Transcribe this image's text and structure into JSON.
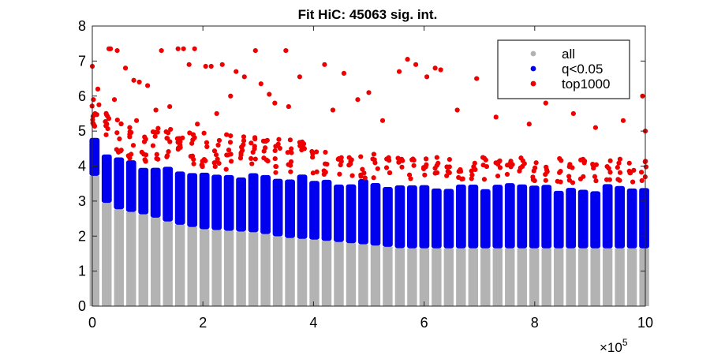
{
  "chart_data": {
    "type": "scatter",
    "title": "Fit HiC: 45063 sig. int.",
    "xlabel": "",
    "ylabel": "",
    "x_exponent_label": "×10",
    "x_exponent_power": "5",
    "xlim": [
      0,
      10
    ],
    "ylim": [
      0,
      8
    ],
    "xticks": [
      0,
      2,
      4,
      6,
      8,
      10
    ],
    "yticks": [
      0,
      1,
      2,
      3,
      4,
      5,
      6,
      7,
      8
    ],
    "grid": false,
    "legend_position": "top-right",
    "series": [
      {
        "name": "all",
        "color": "#b3b3b3",
        "description_of_values": "dense vertical columns from y=0 up to a decreasing floor: ~3.9 at x=0, ~2.6 at x=1, ~2.3 at x=2, ~2.0 at x=3.5, ~1.75 at x=5, ~1.65 from x=5.6 to 10",
        "floor_points": [
          [
            0,
            3.9
          ],
          [
            0.2,
            3.0
          ],
          [
            0.5,
            2.75
          ],
          [
            1.0,
            2.6
          ],
          [
            1.5,
            2.35
          ],
          [
            2.0,
            2.2
          ],
          [
            3.0,
            2.1
          ],
          [
            3.5,
            1.95
          ],
          [
            4.0,
            1.9
          ],
          [
            5.0,
            1.75
          ],
          [
            5.6,
            1.65
          ],
          [
            10,
            1.65
          ]
        ]
      },
      {
        "name": "q<0.05",
        "color": "#0000ee",
        "boundary_points": [
          [
            0,
            4.85
          ],
          [
            0.5,
            4.3
          ],
          [
            1.0,
            4.1
          ],
          [
            1.5,
            4.05
          ],
          [
            2.0,
            3.95
          ],
          [
            2.5,
            3.9
          ],
          [
            3.0,
            3.85
          ],
          [
            4.0,
            3.75
          ],
          [
            5.0,
            3.65
          ],
          [
            6.0,
            3.6
          ],
          [
            7.0,
            3.55
          ],
          [
            8.0,
            3.55
          ],
          [
            9.0,
            3.5
          ],
          [
            10,
            3.5
          ]
        ]
      },
      {
        "name": "top1000",
        "color": "#ee0000",
        "x": [
          0.0,
          0.02,
          0.05,
          0.12,
          0.3,
          0.33,
          0.45,
          0.6,
          0.75,
          0.85,
          1.0,
          1.25,
          1.55,
          1.65,
          1.75,
          1.85,
          2.05,
          2.15,
          2.35,
          2.6,
          2.75,
          2.95,
          3.05,
          3.2,
          3.5,
          3.75,
          4.2,
          4.55,
          5.0,
          5.55,
          5.7,
          5.85,
          6.05,
          6.2,
          6.3,
          6.95,
          8.55,
          8.2,
          9.35,
          9.95,
          10.0,
          0.1,
          0.4,
          0.8,
          1.15,
          1.4,
          1.9,
          2.25,
          2.5,
          3.3,
          3.55,
          4.35,
          4.8,
          5.25,
          6.6,
          7.3,
          7.9,
          8.7,
          9.1,
          9.6
        ],
        "y": [
          6.85,
          5.9,
          5.5,
          5.75,
          7.35,
          7.35,
          7.3,
          6.8,
          6.45,
          6.4,
          6.3,
          7.3,
          7.35,
          7.35,
          6.9,
          7.35,
          6.85,
          6.85,
          6.9,
          6.7,
          6.55,
          7.3,
          6.35,
          6.05,
          7.3,
          6.55,
          6.9,
          6.65,
          6.1,
          6.7,
          7.05,
          6.9,
          6.55,
          6.8,
          6.75,
          6.5,
          6.1,
          5.8,
          6.1,
          6.0,
          5.0,
          6.2,
          5.9,
          5.3,
          5.6,
          5.7,
          5.2,
          5.5,
          6.0,
          5.8,
          5.7,
          5.6,
          5.9,
          5.3,
          5.6,
          5.4,
          5.2,
          5.5,
          5.1,
          5.3
        ]
      }
    ]
  }
}
